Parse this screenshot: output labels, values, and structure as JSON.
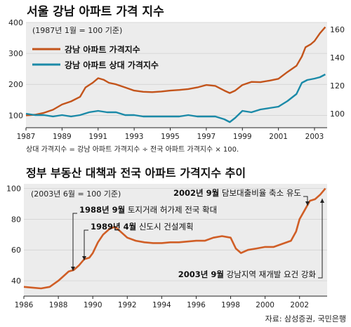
{
  "source": "자료: 삼성증권, 국민은행",
  "colors": {
    "background": "#ffffff",
    "panel": "#ececec",
    "grid": "#cfcfcf",
    "axis": "#222222",
    "line1": "#c3541b",
    "line2": "#1b8aa8",
    "line3": "#d05e26",
    "callout": "#222222"
  },
  "chart_data": [
    {
      "type": "line",
      "title": "서울 강남 아파트 가격 지수",
      "subtitle": "(1987년 1월 = 100 기준)",
      "note": "상대 가격지수 = 강남 아파트 가격지수 ÷ 전국 아파트 가격지수 × 100.",
      "x_ticks": [
        "1987",
        "1989",
        "1991",
        "1993",
        "1995",
        "1997",
        "1999",
        "2001",
        "2003"
      ],
      "xlim": [
        1987,
        2003.7
      ],
      "ylim_left": [
        60,
        400
      ],
      "y_ticks_left": [
        100,
        200,
        300,
        400
      ],
      "ylim_right": [
        90,
        165
      ],
      "y_ticks_right": [
        100,
        120,
        140,
        160
      ],
      "legend_position": "top-left",
      "series": [
        {
          "name": "강남 아파트 가격지수",
          "axis": "left",
          "x": [
            1987.0,
            1987.5,
            1988.0,
            1988.5,
            1989.0,
            1989.5,
            1990.0,
            1990.3,
            1990.7,
            1991.0,
            1991.3,
            1991.6,
            1992.0,
            1992.5,
            1993.0,
            1993.5,
            1994.0,
            1994.5,
            1995.0,
            1995.5,
            1996.0,
            1996.5,
            1997.0,
            1997.5,
            1998.0,
            1998.3,
            1998.6,
            1999.0,
            1999.5,
            2000.0,
            2000.5,
            2001.0,
            2001.5,
            2002.0,
            2002.3,
            2002.5,
            2002.8,
            2003.0,
            2003.3,
            2003.6
          ],
          "y": [
            100,
            102,
            108,
            118,
            135,
            145,
            160,
            190,
            205,
            220,
            215,
            205,
            200,
            190,
            180,
            176,
            175,
            177,
            180,
            182,
            185,
            190,
            198,
            195,
            180,
            172,
            180,
            198,
            208,
            207,
            212,
            218,
            240,
            260,
            290,
            320,
            330,
            340,
            365,
            385
          ]
        },
        {
          "name": "강남 아파트 상대 가격지수",
          "axis": "right",
          "x": [
            1987.0,
            1987.5,
            1988.0,
            1988.5,
            1989.0,
            1989.5,
            1990.0,
            1990.5,
            1991.0,
            1991.5,
            1992.0,
            1992.5,
            1993.0,
            1993.5,
            1994.0,
            1994.5,
            1995.0,
            1995.5,
            1996.0,
            1996.5,
            1997.0,
            1997.5,
            1998.0,
            1998.3,
            1998.6,
            1999.0,
            1999.5,
            2000.0,
            2000.5,
            2001.0,
            2001.5,
            2002.0,
            2002.3,
            2002.6,
            2003.0,
            2003.3,
            2003.6
          ],
          "y": [
            100,
            99,
            99,
            98,
            99,
            98,
            99,
            101,
            102,
            101,
            101,
            99,
            99,
            98,
            98,
            98,
            98,
            98,
            99,
            98,
            98,
            98,
            96,
            94,
            97,
            102,
            101,
            103,
            104,
            105,
            109,
            114,
            122,
            124,
            125,
            126,
            128
          ]
        }
      ]
    },
    {
      "type": "line",
      "title": "정부 부동산 대책과 전국 아파트 가격지수 추이",
      "subtitle": "(2003년 6월 = 100 기준)",
      "x_ticks": [
        "1986",
        "1988",
        "1990",
        "1992",
        "1994",
        "1996",
        "1998",
        "2000",
        "2002"
      ],
      "xlim": [
        1986,
        2003.6
      ],
      "ylim": [
        30,
        103
      ],
      "y_ticks": [
        40,
        60,
        80,
        100
      ],
      "series": [
        {
          "x": [
            1986.0,
            1986.5,
            1987.0,
            1987.5,
            1988.0,
            1988.3,
            1988.6,
            1988.9,
            1989.2,
            1989.5,
            1989.8,
            1990.0,
            1990.3,
            1990.6,
            1991.0,
            1991.3,
            1991.6,
            1992.0,
            1992.5,
            1993.0,
            1993.5,
            1994.0,
            1994.5,
            1995.0,
            1995.5,
            1996.0,
            1996.5,
            1997.0,
            1997.5,
            1998.0,
            1998.3,
            1998.6,
            1999.0,
            1999.5,
            2000.0,
            2000.5,
            2001.0,
            2001.5,
            2001.8,
            2002.0,
            2002.3,
            2002.6,
            2002.9,
            2003.2,
            2003.5
          ],
          "y": [
            36,
            35.5,
            35,
            36,
            40,
            43,
            46,
            47,
            50,
            54,
            55,
            58,
            65,
            70,
            74,
            75,
            72,
            68,
            66,
            65,
            64.5,
            64.5,
            65,
            65,
            65.5,
            66,
            66,
            68,
            69,
            68,
            61,
            58,
            60,
            61,
            62,
            62,
            64,
            66,
            72,
            80,
            86,
            92,
            93,
            96,
            100
          ]
        }
      ],
      "annotations": [
        {
          "bold": "2002년 9월",
          "text": "담보대출비율 축소 유도",
          "x": 2002.7,
          "y": 93
        },
        {
          "bold": "1988년 9월",
          "text": "토지거래 허가제 전국 확대",
          "x": 1988.7,
          "y": 46
        },
        {
          "bold": "1989년 4월",
          "text": "신도시 건설계획",
          "x": 1989.3,
          "y": 52
        },
        {
          "bold": "2003년 9월",
          "text": "강남지역 재개발 요건 강화",
          "x": 2003.7,
          "y": 100
        }
      ]
    }
  ]
}
